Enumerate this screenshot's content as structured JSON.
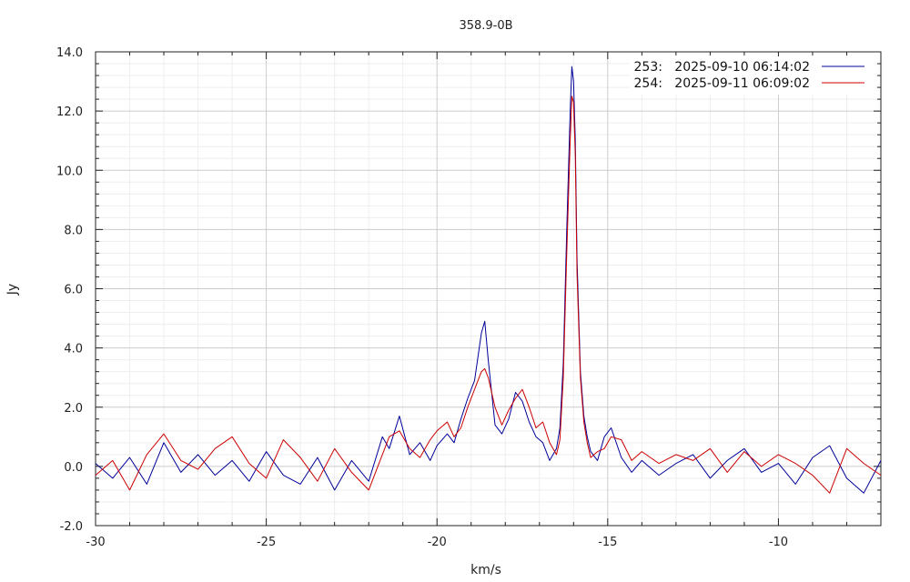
{
  "chart_data": {
    "type": "line",
    "title": "358.9-0B",
    "xlabel": "km/s",
    "ylabel": "Jy",
    "xlim": [
      -30,
      -7
    ],
    "ylim": [
      -2.0,
      14.0
    ],
    "x_ticks": [
      -30,
      -25,
      -20,
      -15,
      -10
    ],
    "x_tick_labels": [
      "-30",
      "-25",
      "-20",
      "-15",
      "-10"
    ],
    "y_ticks": [
      -2,
      0,
      2,
      4,
      6,
      8,
      10,
      12,
      14
    ],
    "y_tick_labels": [
      "-2.0",
      "0.0",
      "2.0",
      "4.0",
      "6.0",
      "8.0",
      "10.0",
      "12.0",
      "14.0"
    ],
    "grid": true,
    "legend_position": "top-right",
    "series": [
      {
        "name": "253:   2025-09-10 06:14:02",
        "color": "#000099",
        "x": [
          -30.0,
          -29.5,
          -29.0,
          -28.5,
          -28.0,
          -27.5,
          -27.0,
          -26.5,
          -26.0,
          -25.5,
          -25.0,
          -24.5,
          -24.0,
          -23.5,
          -23.0,
          -22.5,
          -22.0,
          -21.6,
          -21.4,
          -21.1,
          -20.8,
          -20.5,
          -20.2,
          -20.0,
          -19.7,
          -19.5,
          -19.3,
          -19.1,
          -18.9,
          -18.7,
          -18.6,
          -18.5,
          -18.3,
          -18.1,
          -17.9,
          -17.7,
          -17.5,
          -17.3,
          -17.1,
          -16.9,
          -16.7,
          -16.5,
          -16.4,
          -16.3,
          -16.2,
          -16.1,
          -16.05,
          -16.0,
          -15.95,
          -15.9,
          -15.8,
          -15.7,
          -15.6,
          -15.5,
          -15.3,
          -15.1,
          -14.9,
          -14.6,
          -14.3,
          -14.0,
          -13.5,
          -13.0,
          -12.5,
          -12.0,
          -11.5,
          -11.0,
          -10.5,
          -10.0,
          -9.5,
          -9.0,
          -8.5,
          -8.0,
          -7.5,
          -7.0
        ],
        "values": [
          0.1,
          -0.4,
          0.3,
          -0.6,
          0.8,
          -0.2,
          0.4,
          -0.3,
          0.2,
          -0.5,
          0.5,
          -0.3,
          -0.6,
          0.3,
          -0.8,
          0.2,
          -0.5,
          1.0,
          0.6,
          1.7,
          0.4,
          0.8,
          0.2,
          0.7,
          1.1,
          0.8,
          1.6,
          2.3,
          2.9,
          4.5,
          4.9,
          3.6,
          1.4,
          1.1,
          1.6,
          2.5,
          2.2,
          1.5,
          1.0,
          0.8,
          0.2,
          0.6,
          1.3,
          3.5,
          8.0,
          12.0,
          13.5,
          13.0,
          11.0,
          7.0,
          3.2,
          1.7,
          1.0,
          0.5,
          0.2,
          1.0,
          1.3,
          0.3,
          -0.2,
          0.2,
          -0.3,
          0.1,
          0.4,
          -0.4,
          0.2,
          0.6,
          -0.2,
          0.1,
          -0.6,
          0.3,
          0.7,
          -0.4,
          -0.9,
          0.2
        ]
      },
      {
        "name": "254:   2025-09-11 06:09:02",
        "color": "#cc0000",
        "x": [
          -30.0,
          -29.5,
          -29.0,
          -28.5,
          -28.0,
          -27.5,
          -27.0,
          -26.5,
          -26.0,
          -25.5,
          -25.0,
          -24.5,
          -24.0,
          -23.5,
          -23.0,
          -22.5,
          -22.0,
          -21.6,
          -21.4,
          -21.1,
          -20.8,
          -20.5,
          -20.2,
          -20.0,
          -19.7,
          -19.5,
          -19.3,
          -19.1,
          -18.9,
          -18.7,
          -18.6,
          -18.5,
          -18.3,
          -18.1,
          -17.9,
          -17.7,
          -17.5,
          -17.3,
          -17.1,
          -16.9,
          -16.7,
          -16.5,
          -16.4,
          -16.3,
          -16.2,
          -16.1,
          -16.05,
          -16.0,
          -15.95,
          -15.9,
          -15.8,
          -15.7,
          -15.6,
          -15.5,
          -15.3,
          -15.1,
          -14.9,
          -14.6,
          -14.3,
          -14.0,
          -13.5,
          -13.0,
          -12.5,
          -12.0,
          -11.5,
          -11.0,
          -10.5,
          -10.0,
          -9.5,
          -9.0,
          -8.5,
          -8.0,
          -7.5,
          -7.0
        ],
        "values": [
          -0.3,
          0.2,
          -0.8,
          0.4,
          1.1,
          0.2,
          -0.1,
          0.6,
          1.0,
          0.1,
          -0.4,
          0.9,
          0.3,
          -0.5,
          0.6,
          -0.2,
          -0.8,
          0.4,
          1.0,
          1.2,
          0.6,
          0.3,
          0.9,
          1.2,
          1.5,
          1.0,
          1.3,
          2.0,
          2.6,
          3.2,
          3.3,
          3.0,
          2.0,
          1.4,
          1.9,
          2.3,
          2.6,
          2.0,
          1.3,
          1.5,
          0.8,
          0.4,
          0.9,
          3.0,
          7.2,
          11.0,
          12.5,
          12.3,
          10.5,
          6.5,
          3.0,
          1.5,
          0.8,
          0.3,
          0.5,
          0.6,
          1.0,
          0.9,
          0.2,
          0.5,
          0.1,
          0.4,
          0.2,
          0.6,
          -0.2,
          0.5,
          0.0,
          0.4,
          0.1,
          -0.3,
          -0.9,
          0.6,
          0.1,
          -0.3
        ]
      }
    ]
  }
}
